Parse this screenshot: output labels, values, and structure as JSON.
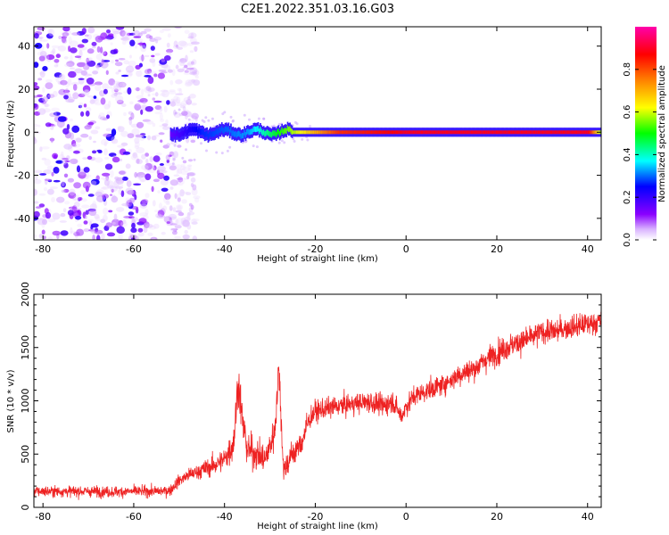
{
  "figure": {
    "title": "C2E1.2022.351.03.16.G03"
  },
  "chart_data": [
    {
      "type": "heatmap",
      "xlabel": "Height of straight line (km)",
      "ylabel": "Frequency (Hz)",
      "xlim": [
        -82,
        43
      ],
      "ylim": [
        -50,
        49
      ],
      "xticks": [
        -80,
        -60,
        -40,
        -20,
        0,
        20,
        40
      ],
      "yticks": [
        -40,
        -20,
        0,
        20,
        40
      ],
      "colorbar": {
        "label": "Normalized spectral amplitude",
        "range": [
          0,
          1
        ],
        "ticks": [
          0.0,
          0.2,
          0.4,
          0.6,
          0.8
        ],
        "colors": [
          "#ffffff",
          "#d9b3ff",
          "#8a00ff",
          "#0000ff",
          "#00ffff",
          "#00ff00",
          "#ffff00",
          "#ff8000",
          "#ff0000",
          "#ff00ff"
        ]
      },
      "features": [
        {
          "name": "noise",
          "x_range": [
            -82,
            -52
          ],
          "freq_range": [
            -50,
            49
          ],
          "max_amplitude": 0.15
        },
        {
          "name": "carrier",
          "x_range": [
            -52,
            43
          ],
          "freq_center": 0,
          "freq_halfwidth": 1.5,
          "amplitude_along_x": [
            [
              -52,
              0.25
            ],
            [
              -45,
              0.35
            ],
            [
              -35,
              0.4
            ],
            [
              -22,
              0.7
            ],
            [
              -15,
              0.85
            ],
            [
              0,
              0.9
            ],
            [
              40,
              0.9
            ],
            [
              43,
              0.6
            ]
          ]
        }
      ]
    },
    {
      "type": "line",
      "xlabel": "Height of straight line (km)",
      "ylabel": "SNR (10 * v/v)",
      "xlim": [
        -82,
        43
      ],
      "ylim": [
        0,
        2000
      ],
      "xticks": [
        -80,
        -60,
        -40,
        -20,
        0,
        20,
        40
      ],
      "yticks": [
        0,
        500,
        1000,
        1500,
        2000
      ],
      "series_color": "#ee2222",
      "series": [
        {
          "x": [
            -82,
            -75,
            -70,
            -65,
            -60,
            -55,
            -52,
            -50,
            -48,
            -45,
            -42,
            -40,
            -38,
            -37,
            -36,
            -35,
            -33,
            -31,
            -29,
            -28,
            -27,
            -25,
            -23,
            -22,
            -21,
            -20,
            -18,
            -15,
            -12,
            -10,
            -8,
            -5,
            -3,
            -1,
            0,
            2,
            5,
            8,
            10,
            12,
            15,
            18,
            20,
            22,
            25,
            28,
            30,
            33,
            35,
            38,
            40,
            43
          ],
          "y": [
            150,
            150,
            150,
            145,
            150,
            150,
            160,
            250,
            300,
            350,
            400,
            450,
            600,
            1200,
            800,
            550,
            500,
            450,
            700,
            1300,
            350,
            500,
            600,
            750,
            850,
            900,
            920,
            950,
            970,
            980,
            990,
            950,
            1000,
            850,
            950,
            1050,
            1100,
            1150,
            1200,
            1250,
            1300,
            1400,
            1450,
            1500,
            1550,
            1600,
            1650,
            1650,
            1680,
            1700,
            1720,
            1750
          ],
          "amplitude": [
            80,
            80,
            80,
            80,
            80,
            80,
            80,
            90,
            100,
            120,
            150,
            180,
            250,
            350,
            300,
            250,
            220,
            220,
            250,
            300,
            200,
            200,
            180,
            180,
            160,
            150,
            150,
            150,
            150,
            150,
            160,
            160,
            160,
            150,
            150,
            150,
            150,
            150,
            160,
            160,
            170,
            180,
            180,
            180,
            180,
            170,
            170,
            170,
            170,
            170,
            170,
            170
          ]
        }
      ]
    }
  ]
}
